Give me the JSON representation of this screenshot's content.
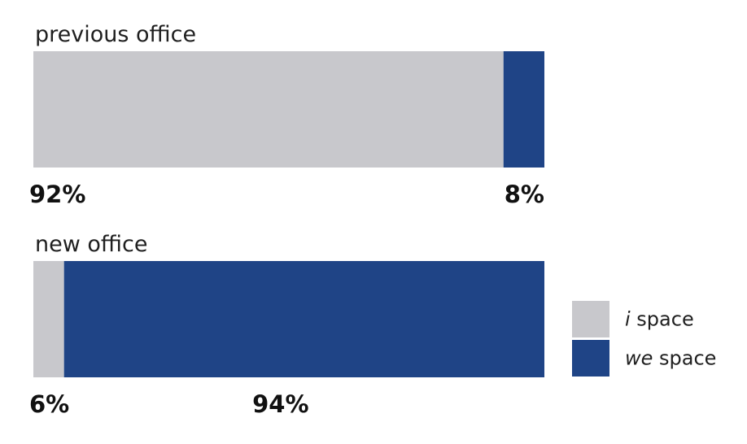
{
  "chart_data": {
    "type": "bar",
    "stacked": "100%",
    "orientation": "horizontal",
    "categories": [
      "previous office",
      "new office"
    ],
    "series": [
      {
        "key": "i",
        "name_italic": "i",
        "name_rest": "space",
        "color": "#c8c8cc",
        "values": [
          92,
          6
        ],
        "labels": [
          "92%",
          "6%"
        ]
      },
      {
        "key": "we",
        "name_italic": "we",
        "name_rest": "space",
        "color": "#1f4486",
        "values": [
          8,
          94
        ],
        "labels": [
          "8%",
          "94%"
        ]
      }
    ],
    "legend_placement": "bottom-right",
    "xlim": [
      0,
      100
    ],
    "grid": false
  }
}
